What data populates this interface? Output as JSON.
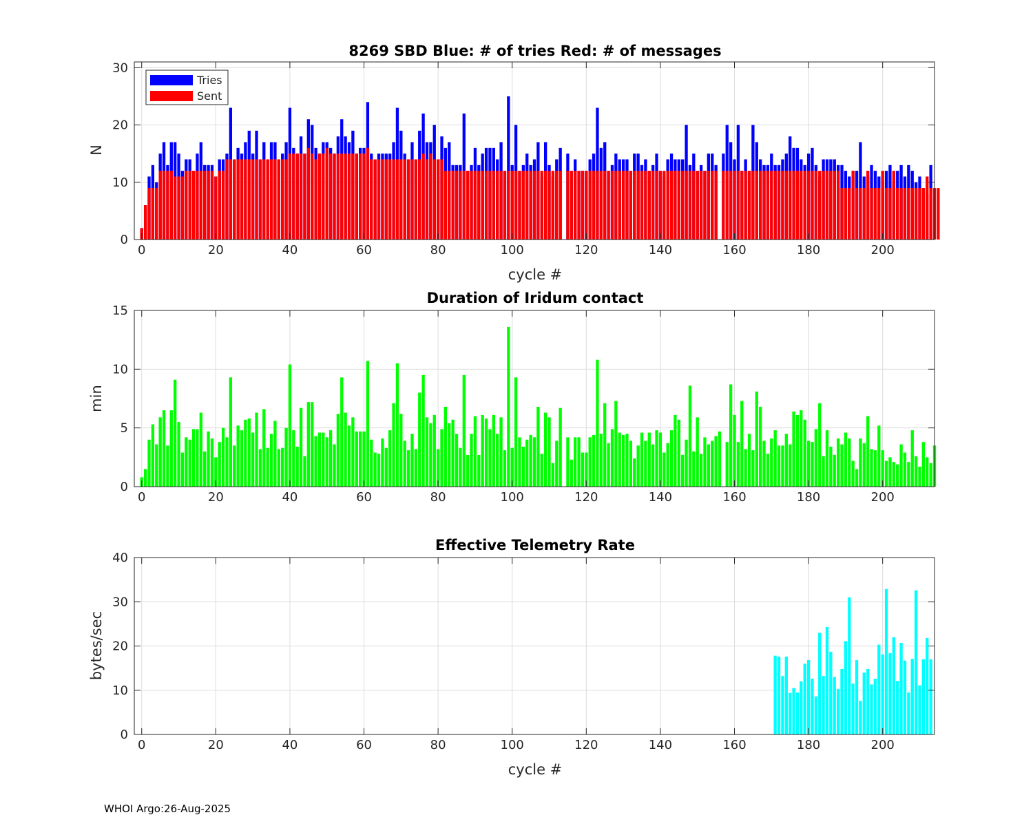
{
  "footer": "WHOI Argo:26-Aug-2025",
  "colors": {
    "tries": "#0000ff",
    "sent": "#ff0000",
    "duration": "#00ff00",
    "rate": "#00ffff",
    "grid": "#dcdcdc",
    "axis": "#262626"
  },
  "chart_data": [
    {
      "id": "tries-sent",
      "type": "bar",
      "title": "8269 SBD  Blue: # of tries   Red: # of messages",
      "xlabel": "cycle #",
      "ylabel": "N",
      "xlim": [
        -2,
        214
      ],
      "ylim": [
        0,
        31
      ],
      "xticks": [
        0,
        20,
        40,
        60,
        80,
        100,
        120,
        140,
        160,
        180,
        200
      ],
      "yticks": [
        0,
        10,
        20,
        30
      ],
      "grid": true,
      "legend": {
        "position": "top-left",
        "entries": [
          {
            "name": "Tries",
            "color": "#0000ff"
          },
          {
            "name": "Sent",
            "color": "#ff0000"
          }
        ]
      },
      "x_start": 0,
      "series": [
        {
          "name": "Tries",
          "values": [
            2,
            6,
            11,
            13,
            10,
            15,
            17,
            13,
            17,
            17,
            15,
            12,
            14,
            14,
            12,
            15,
            17,
            13,
            13,
            13,
            11,
            14,
            14,
            15,
            23,
            14,
            16,
            15,
            17,
            19,
            15,
            19,
            14,
            17,
            14,
            17,
            17,
            14,
            15,
            17,
            23,
            16,
            15,
            18,
            15,
            21,
            20,
            16,
            15,
            17,
            17,
            16,
            15,
            18,
            21,
            18,
            17,
            19,
            15,
            16,
            16,
            24,
            15,
            14,
            15,
            15,
            15,
            15,
            17,
            23,
            19,
            15,
            14,
            17,
            14,
            19,
            22,
            17,
            17,
            20,
            14,
            18,
            16,
            17,
            13,
            13,
            13,
            22,
            12,
            13,
            16,
            13,
            15,
            16,
            16,
            16,
            14,
            17,
            12,
            25,
            13,
            20,
            12,
            13,
            15,
            13,
            14,
            17,
            11,
            17,
            13,
            11,
            14,
            16,
            0,
            15,
            12,
            14,
            12,
            12,
            12,
            14,
            15,
            23,
            16,
            17,
            12,
            13,
            15,
            14,
            14,
            14,
            12,
            15,
            15,
            13,
            14,
            12,
            13,
            15,
            12,
            11,
            14,
            15,
            14,
            14,
            14,
            20,
            13,
            15,
            12,
            13,
            12,
            15,
            15,
            13,
            0,
            15,
            20,
            17,
            14,
            20,
            12,
            14,
            12,
            20,
            17,
            14,
            13,
            13,
            15,
            13,
            13,
            14,
            15,
            18,
            16,
            16,
            14,
            13,
            15,
            16,
            13,
            11,
            14,
            14,
            14,
            14,
            13,
            13,
            12,
            11,
            12,
            12,
            17,
            11,
            11,
            13,
            12,
            11,
            10,
            12,
            13,
            10,
            12,
            13,
            11,
            13,
            12,
            10,
            11,
            9,
            8,
            13
          ]
        },
        {
          "name": "Sent",
          "values": [
            2,
            6,
            9,
            9,
            9,
            12,
            12,
            12,
            12,
            11,
            11,
            11,
            12,
            12,
            12,
            12,
            12,
            12,
            12,
            12,
            11,
            12,
            12,
            14,
            14,
            14,
            14,
            14,
            14,
            14,
            14,
            14,
            14,
            14,
            14,
            14,
            14,
            14,
            14,
            14,
            15,
            15,
            15,
            15,
            15,
            16,
            15,
            14,
            15,
            15,
            16,
            15,
            15,
            15,
            15,
            15,
            15,
            15,
            15,
            15,
            15,
            16,
            14,
            14,
            14,
            14,
            14,
            14,
            14,
            14,
            14,
            14,
            14,
            14,
            14,
            14,
            15,
            14,
            15,
            14,
            14,
            14,
            12,
            12,
            12,
            12,
            12,
            12,
            12,
            12,
            12,
            12,
            12,
            12,
            12,
            12,
            12,
            12,
            12,
            12,
            12,
            12,
            12,
            12,
            12,
            12,
            12,
            12,
            12,
            12,
            12,
            12,
            12,
            12,
            0,
            12,
            12,
            12,
            12,
            12,
            12,
            12,
            12,
            12,
            12,
            12,
            12,
            12,
            12,
            12,
            12,
            12,
            12,
            12,
            12,
            12,
            12,
            12,
            12,
            12,
            12,
            12,
            12,
            12,
            12,
            12,
            12,
            12,
            12,
            12,
            12,
            12,
            12,
            12,
            12,
            12,
            0,
            12,
            12,
            12,
            12,
            12,
            12,
            12,
            12,
            12,
            12,
            12,
            12,
            12,
            12,
            12,
            12,
            12,
            12,
            12,
            12,
            12,
            12,
            12,
            12,
            12,
            12,
            12,
            12,
            12,
            12,
            12,
            12,
            9,
            9,
            9,
            12,
            9,
            9,
            9,
            12,
            9,
            9,
            9,
            12,
            9,
            9,
            12,
            9,
            9,
            9,
            9,
            9,
            9,
            9,
            9,
            11,
            9,
            9,
            9
          ]
        }
      ]
    },
    {
      "id": "duration",
      "type": "bar",
      "title": "Duration of Iridum contact",
      "xlabel": "",
      "ylabel": "min",
      "xlim": [
        -2,
        214
      ],
      "ylim": [
        0,
        15
      ],
      "xticks": [
        0,
        20,
        40,
        60,
        80,
        100,
        120,
        140,
        160,
        180,
        200
      ],
      "yticks": [
        0,
        5,
        10,
        15
      ],
      "grid": true,
      "x_start": 0,
      "series": [
        {
          "name": "Duration",
          "values": [
            0.8,
            1.5,
            4.0,
            5.3,
            3.6,
            5.9,
            6.5,
            3.5,
            6.5,
            9.1,
            5.5,
            2.9,
            4.2,
            4.0,
            4.9,
            4.9,
            6.3,
            3.0,
            4.7,
            4.1,
            2.5,
            3.8,
            5.0,
            4.2,
            9.3,
            3.5,
            5.2,
            4.8,
            5.7,
            5.8,
            4.6,
            6.3,
            3.2,
            6.6,
            3.3,
            4.5,
            5.6,
            3.2,
            3.3,
            5.0,
            10.4,
            4.8,
            3.4,
            6.7,
            2.6,
            7.2,
            7.2,
            4.3,
            4.6,
            4.6,
            4.2,
            4.8,
            3.6,
            6.2,
            9.3,
            6.3,
            5.2,
            5.9,
            4.7,
            4.7,
            4.7,
            10.7,
            4.0,
            2.9,
            2.8,
            4.1,
            3.3,
            4.8,
            7.1,
            10.5,
            6.2,
            3.9,
            3.1,
            4.5,
            3.2,
            8.0,
            9.5,
            5.9,
            5.4,
            6.1,
            3.2,
            4.9,
            6.8,
            5.4,
            5.7,
            4.5,
            3.3,
            9.5,
            2.7,
            4.5,
            6.0,
            2.7,
            6.1,
            5.8,
            4.9,
            6.1,
            4.5,
            5.9,
            3.1,
            13.6,
            3.3,
            9.3,
            4.2,
            3.4,
            4.0,
            4.4,
            4.2,
            6.8,
            2.8,
            6.3,
            5.9,
            2.0,
            3.9,
            6.7,
            0,
            4.2,
            2.3,
            4.2,
            4.2,
            2.9,
            2.9,
            4.2,
            4.4,
            10.8,
            4.5,
            7.1,
            3.7,
            4.9,
            7.3,
            4.6,
            4.4,
            4.5,
            3.9,
            2.4,
            3.5,
            4.6,
            3.9,
            4.6,
            3.6,
            4.8,
            4.6,
            2.9,
            3.7,
            4.8,
            6.1,
            5.7,
            2.7,
            4.0,
            8.6,
            3.0,
            5.9,
            2.8,
            4.2,
            3.6,
            3.9,
            4.3,
            4.7,
            0,
            3.8,
            8.7,
            6.1,
            3.8,
            7.3,
            3.2,
            4.5,
            3.1,
            8.1,
            6.8,
            3.9,
            2.8,
            4.1,
            4.8,
            3.5,
            3.5,
            4.5,
            3.6,
            6.4,
            6.1,
            6.5,
            5.7,
            3.9,
            3.8,
            4.9,
            7.1,
            2.6,
            4.8,
            3.4,
            2.7,
            4.1,
            3.6,
            4.6,
            4.1,
            2.2,
            1.5,
            4.1,
            3.7,
            6.0,
            3.2,
            3.1,
            5.2,
            3.1,
            2.2,
            2.5,
            2.1,
            1.9,
            3.6,
            2.9,
            2.1,
            4.8,
            2.6,
            1.7,
            3.8,
            2.5,
            2.0,
            3.5
          ]
        }
      ]
    },
    {
      "id": "rate",
      "type": "bar",
      "title": "Effective Telemetry Rate",
      "xlabel": "cycle #",
      "ylabel": "bytes/sec",
      "xlim": [
        -2,
        214
      ],
      "ylim": [
        0,
        40
      ],
      "xticks": [
        0,
        20,
        40,
        60,
        80,
        100,
        120,
        140,
        160,
        180,
        200
      ],
      "yticks": [
        0,
        10,
        20,
        30,
        40
      ],
      "grid": true,
      "x_start": 171,
      "series": [
        {
          "name": "Rate",
          "values": [
            17.8,
            17.6,
            13.2,
            17.6,
            9.4,
            10.5,
            9.5,
            12.0,
            16.0,
            16.8,
            12.6,
            8.6,
            23.0,
            13.2,
            24.3,
            18.7,
            13.0,
            10.3,
            14.8,
            21.1,
            31.0,
            11.5,
            16.8,
            7.6,
            14.0,
            14.8,
            11.3,
            12.6,
            20.3,
            18.1,
            32.9,
            18.4,
            22.0,
            12.1,
            20.7,
            16.7,
            9.5,
            17.1,
            32.6,
            11.1,
            17.0,
            21.8,
            17.0
          ]
        }
      ]
    }
  ]
}
